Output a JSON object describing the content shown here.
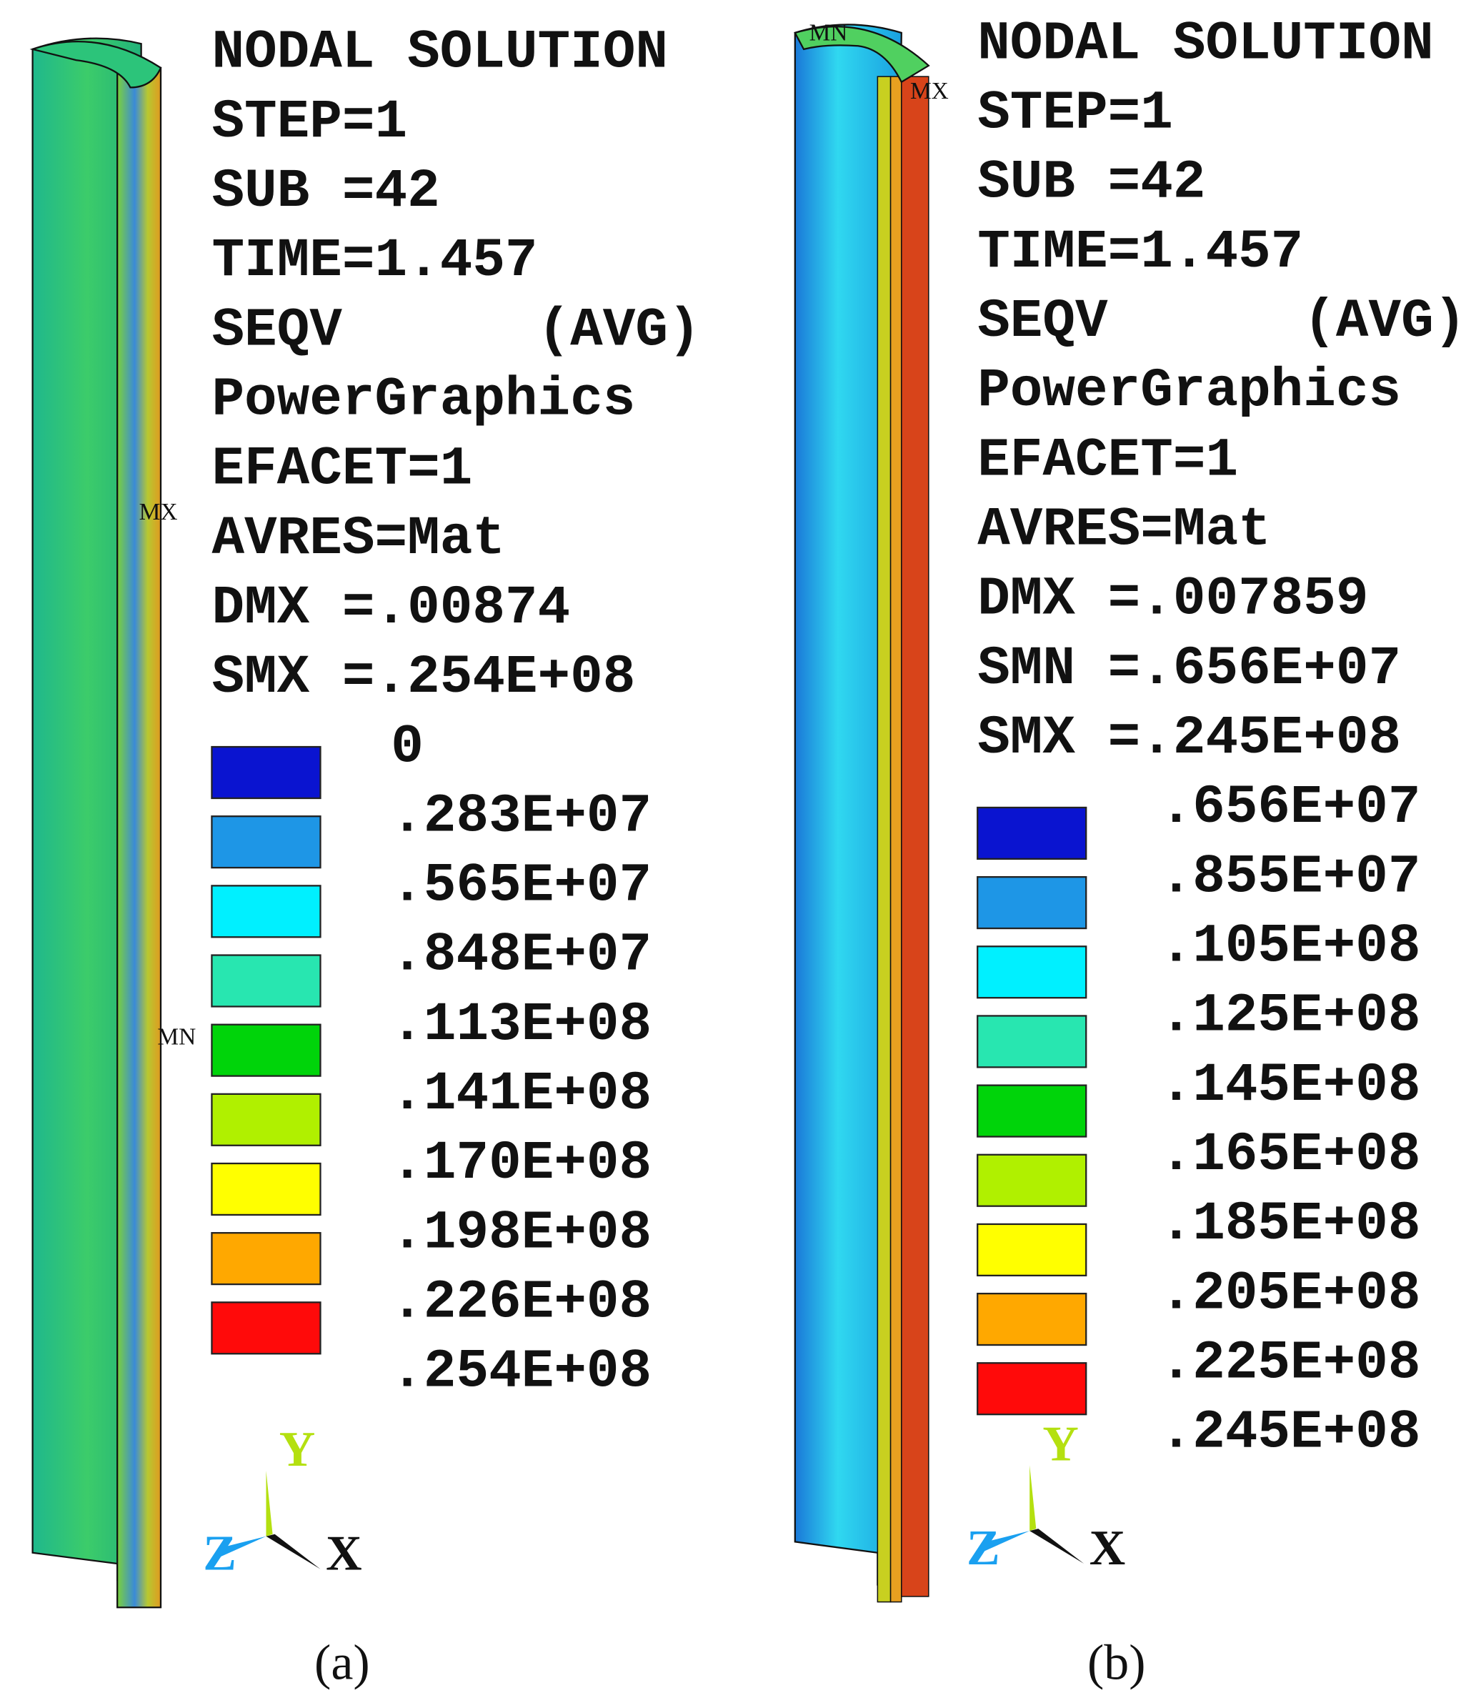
{
  "panels": [
    {
      "caption": "(a)",
      "info": [
        "NODAL SOLUTION",
        "STEP=1",
        "SUB =42",
        "TIME=1.457",
        "SEQV      (AVG)",
        "PowerGraphics",
        "EFACET=1",
        "AVRES=Mat",
        "DMX =.00874",
        "SMX =.254E+08"
      ],
      "legend": [
        "0",
        ".283E+07",
        ".565E+07",
        ".848E+07",
        ".113E+08",
        ".141E+08",
        ".170E+08",
        ".198E+08",
        ".226E+08",
        ".254E+08"
      ],
      "markers": [
        "MX",
        "MN"
      ],
      "axes": [
        "Y",
        "Z",
        "X"
      ]
    },
    {
      "caption": "(b)",
      "info": [
        "NODAL SOLUTION",
        "STEP=1",
        "SUB =42",
        "TIME=1.457",
        "SEQV      (AVG)",
        "PowerGraphics",
        "EFACET=1",
        "AVRES=Mat",
        "DMX =.007859",
        "SMN =.656E+07",
        "SMX =.245E+08"
      ],
      "legend": [
        ".656E+07",
        ".855E+07",
        ".105E+08",
        ".125E+08",
        ".145E+08",
        ".165E+08",
        ".185E+08",
        ".205E+08",
        ".225E+08",
        ".245E+08"
      ],
      "markers": [
        "MN",
        "MX"
      ],
      "axes": [
        "Y",
        "Z",
        "X"
      ]
    }
  ]
}
